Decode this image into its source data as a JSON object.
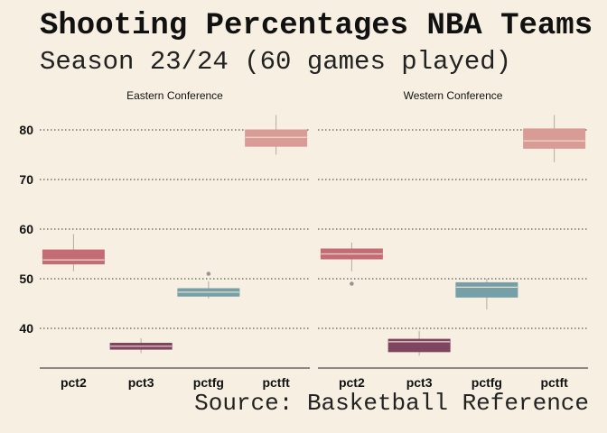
{
  "title": "Shooting Percentages NBA Teams",
  "subtitle": "Season 23/24 (60 games played)",
  "caption": "Source: Basketball Reference",
  "colors": {
    "background": "#f7f0e2",
    "pct2": "#c56b76",
    "pct3": "#7f4460",
    "pctfg": "#76a0a8",
    "pctft": "#d99b96",
    "median": "#e9dccb",
    "whisker": "#b5a9a0",
    "outlier": "#9b9590",
    "grid": "#333333"
  },
  "chart_data": {
    "type": "boxplot",
    "categories": [
      "pct2",
      "pct3",
      "pctfg",
      "pctft"
    ],
    "yticks": [
      40,
      50,
      60,
      70,
      80
    ],
    "ylim": [
      32,
      84
    ],
    "panels": [
      {
        "name": "Eastern Conference",
        "boxes": [
          {
            "category": "pct2",
            "min": 51.5,
            "q1": 53.0,
            "median": 53.8,
            "q3": 55.8,
            "max": 59.0,
            "outliers": []
          },
          {
            "category": "pct3",
            "min": 35.0,
            "q1": 35.8,
            "median": 36.4,
            "q3": 37.0,
            "max": 38.0,
            "outliers": []
          },
          {
            "category": "pctfg",
            "min": 46.0,
            "q1": 46.5,
            "median": 47.3,
            "q3": 48.0,
            "max": 49.5,
            "outliers": [
              51.0
            ]
          },
          {
            "category": "pctft",
            "min": 75.0,
            "q1": 76.7,
            "median": 78.5,
            "q3": 80.0,
            "max": 83.0,
            "outliers": []
          }
        ]
      },
      {
        "name": "Western Conference",
        "boxes": [
          {
            "category": "pct2",
            "min": 51.5,
            "q1": 54.0,
            "median": 55.0,
            "q3": 56.0,
            "max": 57.3,
            "outliers": [
              49.0
            ]
          },
          {
            "category": "pct3",
            "min": 34.5,
            "q1": 35.3,
            "median": 37.3,
            "q3": 37.8,
            "max": 39.5,
            "outliers": []
          },
          {
            "category": "pctfg",
            "min": 43.8,
            "q1": 46.3,
            "median": 48.3,
            "q3": 49.2,
            "max": 50.0,
            "outliers": []
          },
          {
            "category": "pctft",
            "min": 73.5,
            "q1": 76.3,
            "median": 77.8,
            "q3": 80.2,
            "max": 83.0,
            "outliers": []
          }
        ]
      }
    ]
  }
}
